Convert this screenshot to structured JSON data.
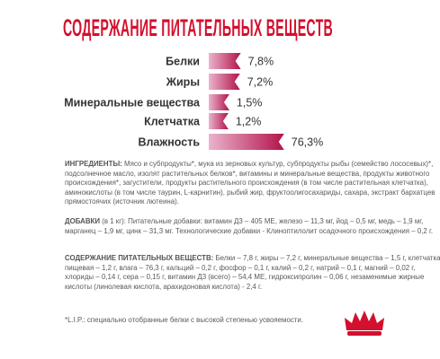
{
  "chart_data": {
    "type": "bar",
    "title": "СОДЕРЖАНИЕ ПИТАТЕЛЬНЫХ ВЕЩЕСТВ",
    "categories": [
      "Белки",
      "Жиры",
      "Минеральные вещества",
      "Клетчатка",
      "Влажность"
    ],
    "values": [
      7.8,
      7.2,
      1.5,
      1.2,
      76.3
    ],
    "value_labels": [
      "7,8%",
      "7,2%",
      "1,5%",
      "1,2%",
      "76,3%"
    ],
    "color_start": "#eab4cc",
    "color": "#b3124a"
  },
  "ingredients": {
    "heading": "ИНГРЕДИЕНТЫ:",
    "text": "Мясо и субпродукты*, мука из зерновых культур, субпродукты рыбы (семейство лососевых)*, подсолнечное масло, изолят растительных белков*, витамины и минеральные вещества, продукты животного происхождения*, загустители, продукты растительного происхождения (в том числе растительная клетчатка), аминокислоты (в том числе таурин, L-карнитин), рыбий жир, фруктоолигосахариды, сахара, экстракт бархатцев прямостоячих (источник лютеина)."
  },
  "additives": {
    "heading": "ДОБАВКИ",
    "text": " (в 1 кг): Питательные добавки: витамин Д3 – 405 МЕ, железо – 11,3 мг, йод – 0,5 мг, медь – 1,9 мг, марганец – 1,9 мг, цинк – 31,3 мг.  Технологические добавки - Клиноптилолит осадочного происхождения – 0,2 г."
  },
  "composition": {
    "heading": "СОДЕРЖАНИЕ ПИТАТЕЛЬНЫХ ВЕЩЕСТВ:",
    "text": "Белки – 7,8 г, жиры – 7,2 г, минеральные вещества  – 1,5 г, клетчатка пищевая – 1,2 г, влага – 76,3 г, кальций – 0,2 г, фосфор – 0,1 г, калий – 0,2 г, натрий – 0,1 г, магний – 0,02 г, хлориды – 0,14 г, сера – 0,15 г, витамин Д3 (всего) – 54,4 МЕ, гидроксипролин – 0,06 г, незаменимые жирные кислоты (линолевая кислота, арахидоновая кислота) - 2,4 г."
  },
  "footnote": "*L.I.P.: специально отобранные белки с высокой степенью усвояемости."
}
